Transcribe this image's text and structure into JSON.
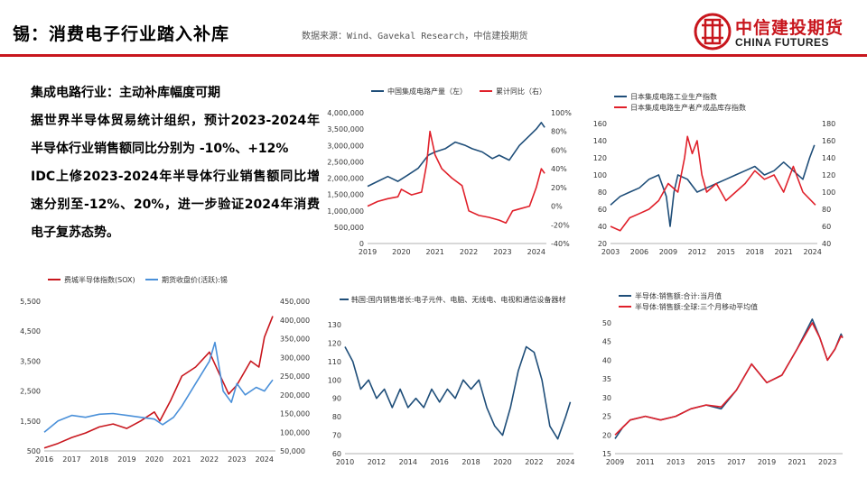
{
  "header": {
    "title": "锡：消费电子行业踏入补库",
    "source": "数据来源：Wind、Gavekal Research，中信建投期货",
    "logo_cn": "中信建投期货",
    "logo_en": "CHINA FUTURES"
  },
  "colors": {
    "red": "#e0202a",
    "navy": "#1f4e79",
    "blue": "#4a90d9",
    "brand": "#c8161d"
  },
  "text_block": {
    "heading": "集成电路行业：主动补库幅度可期",
    "para1": "据世界半导体贸易统计组织，预计2023-2024年半导体行业销售额同比分别为 -10%、+12%",
    "para2": "IDC上修2023-2024年半导体行业销售额同比增速分别至-12%、20%，进一步验证2024年消费电子复苏态势。"
  },
  "chart_data": [
    {
      "type": "line",
      "legend": [
        "中国集成电路产量（左）",
        "累计同比（右）"
      ],
      "x_ticks": [
        "2019",
        "2020",
        "2021",
        "2022",
        "2023",
        "2024"
      ],
      "xlim": [
        2019,
        2024.3
      ],
      "y_left_ticks": [
        "0",
        "500,000",
        "1,000,000",
        "1,500,000",
        "2,000,000",
        "2,500,000",
        "3,000,000",
        "3,500,000",
        "4,000,000"
      ],
      "ylim_left": [
        0,
        4000000
      ],
      "y_right_ticks": [
        "-40%",
        "-20%",
        "0%",
        "20%",
        "40%",
        "60%",
        "80%",
        "100%"
      ],
      "ylim_right": [
        -40,
        100
      ],
      "series": [
        {
          "name": "中国集成电路产量（左）",
          "axis": "left",
          "color": "#1f4e79",
          "points": [
            [
              2019.0,
              1750000
            ],
            [
              2019.3,
              1900000
            ],
            [
              2019.6,
              2050000
            ],
            [
              2019.9,
              1900000
            ],
            [
              2020.2,
              2100000
            ],
            [
              2020.5,
              2300000
            ],
            [
              2020.8,
              2700000
            ],
            [
              2021.0,
              2800000
            ],
            [
              2021.3,
              2900000
            ],
            [
              2021.6,
              3100000
            ],
            [
              2021.9,
              3000000
            ],
            [
              2022.1,
              2900000
            ],
            [
              2022.4,
              2800000
            ],
            [
              2022.7,
              2600000
            ],
            [
              2022.9,
              2700000
            ],
            [
              2023.2,
              2550000
            ],
            [
              2023.5,
              3000000
            ],
            [
              2023.8,
              3300000
            ],
            [
              2024.0,
              3500000
            ],
            [
              2024.15,
              3700000
            ],
            [
              2024.25,
              3550000
            ]
          ]
        },
        {
          "name": "累计同比（右）",
          "axis": "right",
          "color": "#e0202a",
          "points": [
            [
              2019.0,
              0
            ],
            [
              2019.3,
              5
            ],
            [
              2019.6,
              8
            ],
            [
              2019.9,
              10
            ],
            [
              2020.0,
              18
            ],
            [
              2020.3,
              12
            ],
            [
              2020.6,
              15
            ],
            [
              2020.75,
              45
            ],
            [
              2020.85,
              80
            ],
            [
              2021.0,
              55
            ],
            [
              2021.2,
              40
            ],
            [
              2021.5,
              30
            ],
            [
              2021.8,
              22
            ],
            [
              2022.0,
              -5
            ],
            [
              2022.3,
              -10
            ],
            [
              2022.6,
              -12
            ],
            [
              2022.9,
              -15
            ],
            [
              2023.1,
              -18
            ],
            [
              2023.3,
              -5
            ],
            [
              2023.5,
              -3
            ],
            [
              2023.8,
              0
            ],
            [
              2024.0,
              20
            ],
            [
              2024.15,
              40
            ],
            [
              2024.25,
              35
            ]
          ]
        }
      ]
    },
    {
      "type": "line",
      "legend": [
        "日本集成电路工业生产指数",
        "日本集成电路生产者产成品库存指数"
      ],
      "x_ticks": [
        "2003",
        "2006",
        "2009",
        "2012",
        "2015",
        "2018",
        "2021",
        "2024"
      ],
      "xlim": [
        2003,
        2024.5
      ],
      "y_left_ticks": [
        "20",
        "40",
        "60",
        "80",
        "100",
        "120",
        "140",
        "160"
      ],
      "ylim_left": [
        20,
        160
      ],
      "y_right_ticks": [
        "40",
        "60",
        "80",
        "100",
        "120",
        "140",
        "160",
        "180"
      ],
      "ylim_right": [
        40,
        180
      ],
      "series": [
        {
          "name": "日本集成电路工业生产指数",
          "axis": "left",
          "color": "#1f4e79",
          "points": [
            [
              2003,
              65
            ],
            [
              2004,
              75
            ],
            [
              2005,
              80
            ],
            [
              2006,
              85
            ],
            [
              2007,
              95
            ],
            [
              2008,
              100
            ],
            [
              2008.8,
              75
            ],
            [
              2009.2,
              40
            ],
            [
              2009.6,
              80
            ],
            [
              2010,
              100
            ],
            [
              2011,
              95
            ],
            [
              2012,
              80
            ],
            [
              2013,
              85
            ],
            [
              2014,
              90
            ],
            [
              2015,
              95
            ],
            [
              2016,
              100
            ],
            [
              2017,
              105
            ],
            [
              2018,
              110
            ],
            [
              2019,
              100
            ],
            [
              2020,
              105
            ],
            [
              2021,
              115
            ],
            [
              2022,
              105
            ],
            [
              2023,
              95
            ],
            [
              2023.7,
              120
            ],
            [
              2024.2,
              135
            ]
          ]
        },
        {
          "name": "日本集成电路生产者产成品库存指数",
          "axis": "right",
          "color": "#e0202a",
          "points": [
            [
              2003,
              60
            ],
            [
              2004,
              55
            ],
            [
              2005,
              70
            ],
            [
              2006,
              75
            ],
            [
              2007,
              80
            ],
            [
              2008,
              90
            ],
            [
              2009,
              110
            ],
            [
              2010,
              100
            ],
            [
              2010.7,
              140
            ],
            [
              2011,
              165
            ],
            [
              2011.5,
              145
            ],
            [
              2012,
              160
            ],
            [
              2012.5,
              120
            ],
            [
              2013,
              100
            ],
            [
              2014,
              110
            ],
            [
              2015,
              90
            ],
            [
              2016,
              100
            ],
            [
              2017,
              110
            ],
            [
              2018,
              125
            ],
            [
              2019,
              115
            ],
            [
              2020,
              120
            ],
            [
              2021,
              100
            ],
            [
              2022,
              130
            ],
            [
              2023,
              100
            ],
            [
              2024.3,
              85
            ]
          ]
        }
      ]
    },
    {
      "type": "line",
      "legend": [
        "费城半导体指数(SOX)",
        "期货收盘价(活跃):锡"
      ],
      "x_ticks": [
        "2016",
        "2017",
        "2018",
        "2019",
        "2020",
        "2021",
        "2022",
        "2023",
        "2024"
      ],
      "xlim": [
        2016,
        2024.4
      ],
      "y_left_ticks": [
        "500",
        "1,500",
        "2,500",
        "3,500",
        "4,500",
        "5,500"
      ],
      "ylim_left": [
        500,
        5500
      ],
      "y_right_ticks": [
        "50,000",
        "100,000",
        "150,000",
        "200,000",
        "250,000",
        "300,000",
        "350,000",
        "400,000",
        "450,000"
      ],
      "ylim_right": [
        50000,
        450000
      ],
      "series": [
        {
          "name": "费城半导体指数(SOX)",
          "axis": "left",
          "color": "#c8161d",
          "points": [
            [
              2016,
              600
            ],
            [
              2016.5,
              750
            ],
            [
              2017,
              950
            ],
            [
              2017.5,
              1100
            ],
            [
              2018,
              1300
            ],
            [
              2018.5,
              1400
            ],
            [
              2019,
              1250
            ],
            [
              2019.5,
              1500
            ],
            [
              2020,
              1800
            ],
            [
              2020.2,
              1500
            ],
            [
              2020.6,
              2200
            ],
            [
              2021,
              3000
            ],
            [
              2021.5,
              3300
            ],
            [
              2022,
              3800
            ],
            [
              2022.3,
              3200
            ],
            [
              2022.7,
              2400
            ],
            [
              2023,
              2700
            ],
            [
              2023.5,
              3500
            ],
            [
              2023.8,
              3300
            ],
            [
              2024,
              4300
            ],
            [
              2024.3,
              5000
            ]
          ]
        },
        {
          "name": "期货收盘价(活跃):锡",
          "axis": "right",
          "color": "#4a90d9",
          "points": [
            [
              2016,
              100000
            ],
            [
              2016.5,
              130000
            ],
            [
              2017,
              145000
            ],
            [
              2017.5,
              140000
            ],
            [
              2018,
              148000
            ],
            [
              2018.5,
              150000
            ],
            [
              2019,
              145000
            ],
            [
              2019.5,
              140000
            ],
            [
              2020,
              135000
            ],
            [
              2020.3,
              120000
            ],
            [
              2020.7,
              140000
            ],
            [
              2021,
              170000
            ],
            [
              2021.5,
              230000
            ],
            [
              2022,
              290000
            ],
            [
              2022.2,
              340000
            ],
            [
              2022.5,
              210000
            ],
            [
              2022.8,
              180000
            ],
            [
              2023,
              230000
            ],
            [
              2023.3,
              200000
            ],
            [
              2023.7,
              220000
            ],
            [
              2024,
              210000
            ],
            [
              2024.3,
              240000
            ]
          ]
        }
      ]
    },
    {
      "type": "line",
      "legend": [
        "韩国:国内销售增长:电子元件、电脑、无线电、电视和通信设备器材"
      ],
      "x_ticks": [
        "2010",
        "2012",
        "2014",
        "2016",
        "2018",
        "2020",
        "2022",
        "2024"
      ],
      "xlim": [
        2010,
        2024.5
      ],
      "y_left_ticks": [
        "60",
        "70",
        "80",
        "90",
        "100",
        "110",
        "120",
        "130"
      ],
      "ylim_left": [
        60,
        130
      ],
      "series": [
        {
          "name": "韩国:国内销售增长:电子元件、电脑、无线电、电视和通信设备器材",
          "axis": "left",
          "color": "#1f4e79",
          "points": [
            [
              2010,
              118
            ],
            [
              2010.5,
              110
            ],
            [
              2011,
              95
            ],
            [
              2011.5,
              100
            ],
            [
              2012,
              90
            ],
            [
              2012.5,
              95
            ],
            [
              2013,
              85
            ],
            [
              2013.5,
              95
            ],
            [
              2014,
              85
            ],
            [
              2014.5,
              90
            ],
            [
              2015,
              85
            ],
            [
              2015.5,
              95
            ],
            [
              2016,
              88
            ],
            [
              2016.5,
              95
            ],
            [
              2017,
              90
            ],
            [
              2017.5,
              100
            ],
            [
              2018,
              95
            ],
            [
              2018.5,
              100
            ],
            [
              2019,
              85
            ],
            [
              2019.5,
              75
            ],
            [
              2020,
              70
            ],
            [
              2020.5,
              85
            ],
            [
              2021,
              105
            ],
            [
              2021.5,
              118
            ],
            [
              2022,
              115
            ],
            [
              2022.5,
              100
            ],
            [
              2023,
              75
            ],
            [
              2023.5,
              68
            ],
            [
              2024,
              80
            ],
            [
              2024.3,
              88
            ]
          ]
        }
      ]
    },
    {
      "type": "line",
      "legend": [
        "半导体:销售额:合计:当月值",
        "半导体:销售额:全球:三个月移动平均值"
      ],
      "x_ticks": [
        "2009",
        "2011",
        "2013",
        "2015",
        "2017",
        "2019",
        "2021",
        "2023"
      ],
      "xlim": [
        2009,
        2024
      ],
      "y_left_ticks": [
        "15",
        "20",
        "25",
        "30",
        "35",
        "40",
        "45",
        "50"
      ],
      "ylim_left": [
        15,
        50
      ],
      "series": [
        {
          "name": "半导体:销售额:合计:当月值",
          "axis": "left",
          "color": "#1f4e79",
          "points": [
            [
              2009,
              19
            ],
            [
              2009.5,
              22
            ],
            [
              2010,
              24
            ],
            [
              2011,
              25
            ],
            [
              2012,
              24
            ],
            [
              2013,
              25
            ],
            [
              2014,
              27
            ],
            [
              2015,
              28
            ],
            [
              2016,
              27
            ],
            [
              2017,
              32
            ],
            [
              2018,
              39
            ],
            [
              2019,
              34
            ],
            [
              2020,
              36
            ],
            [
              2021,
              43
            ],
            [
              2022,
              51
            ],
            [
              2022.5,
              46
            ],
            [
              2023,
              40
            ],
            [
              2023.5,
              43
            ],
            [
              2023.9,
              47
            ],
            [
              2024,
              46
            ]
          ]
        },
        {
          "name": "半导体:销售额:全球:三个月移动平均值",
          "axis": "left",
          "color": "#e0202a",
          "points": [
            [
              2009,
              20
            ],
            [
              2009.5,
              22
            ],
            [
              2010,
              24
            ],
            [
              2011,
              25
            ],
            [
              2012,
              24
            ],
            [
              2013,
              25
            ],
            [
              2014,
              27
            ],
            [
              2015,
              28
            ],
            [
              2016,
              27.5
            ],
            [
              2017,
              32
            ],
            [
              2018,
              39
            ],
            [
              2019,
              34
            ],
            [
              2020,
              36
            ],
            [
              2021,
              43
            ],
            [
              2022,
              50
            ],
            [
              2022.5,
              46
            ],
            [
              2023,
              40
            ],
            [
              2023.5,
              43
            ],
            [
              2023.9,
              46.5
            ],
            [
              2024,
              46
            ]
          ]
        }
      ]
    }
  ]
}
